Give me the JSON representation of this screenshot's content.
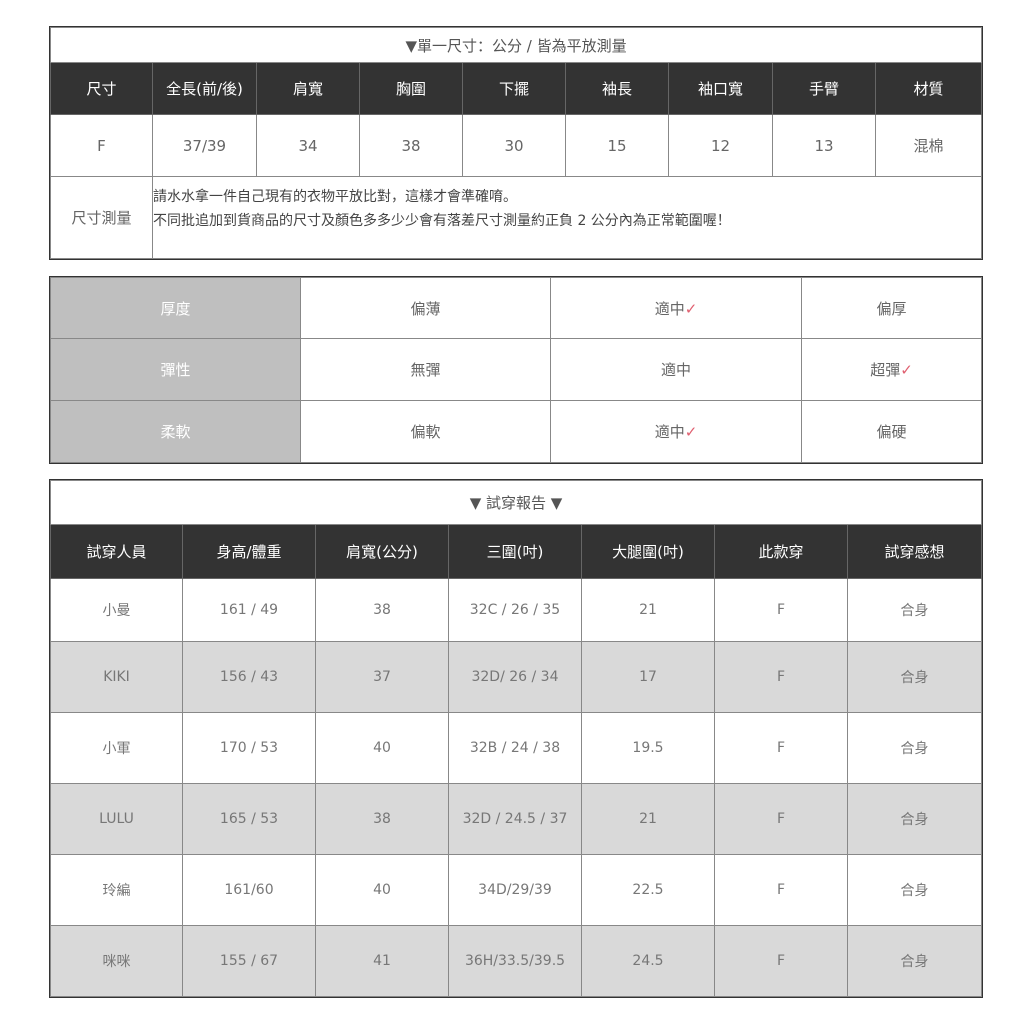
{
  "size_table": {
    "title": "▼單一尺寸：公分 / 皆為平放測量",
    "headers": [
      "尺寸",
      "全長(前/後)",
      "肩寬",
      "胸圍",
      "下擺",
      "袖長",
      "袖口寬",
      "手臂",
      "材質"
    ],
    "row": [
      "F",
      "37/39",
      "34",
      "38",
      "30",
      "15",
      "12",
      "13",
      "混棉"
    ],
    "note_label": "尺寸測量",
    "note_lines": [
      "請水水拿一件自己現有的衣物平放比對，這樣才會準確唷。",
      "不同批追加到貨商品的尺寸及顏色多多少少會有落差尺寸測量約正負 2 公分內為正常範圍喔！"
    ]
  },
  "fabric_table": {
    "check_mark": "✓",
    "check_color": "#e06070",
    "rows": [
      {
        "label": "厚度",
        "options": [
          "偏薄",
          "適中",
          "偏厚"
        ],
        "selected": 1
      },
      {
        "label": "彈性",
        "options": [
          "無彈",
          "適中",
          "超彈"
        ],
        "selected": 2
      },
      {
        "label": "柔軟",
        "options": [
          "偏軟",
          "適中",
          "偏硬"
        ],
        "selected": 1
      }
    ]
  },
  "fitting_table": {
    "title": "▼ 試穿報告 ▼",
    "headers": [
      "試穿人員",
      "身高/體重",
      "肩寬(公分)",
      "三圍(吋)",
      "大腿圍(吋)",
      "此款穿",
      "試穿感想"
    ],
    "rows": [
      [
        "小曼",
        "161 / 49",
        "38",
        "32C / 26 / 35",
        "21",
        "F",
        "合身"
      ],
      [
        "KIKI",
        "156 / 43",
        "37",
        "32D/ 26 / 34",
        "17",
        "F",
        "合身"
      ],
      [
        "小軍",
        "170 / 53",
        "40",
        "32B / 24 / 38",
        "19.5",
        "F",
        "合身"
      ],
      [
        "LULU",
        "165 / 53",
        "38",
        "32D / 24.5 / 37",
        "21",
        "F",
        "合身"
      ],
      [
        "玲編",
        "161/60",
        "40",
        "34D/29/39",
        "22.5",
        "F",
        "合身"
      ],
      [
        "咪咪",
        "155 / 67",
        "41",
        "36H/33.5/39.5",
        "24.5",
        "F",
        "合身"
      ]
    ]
  }
}
